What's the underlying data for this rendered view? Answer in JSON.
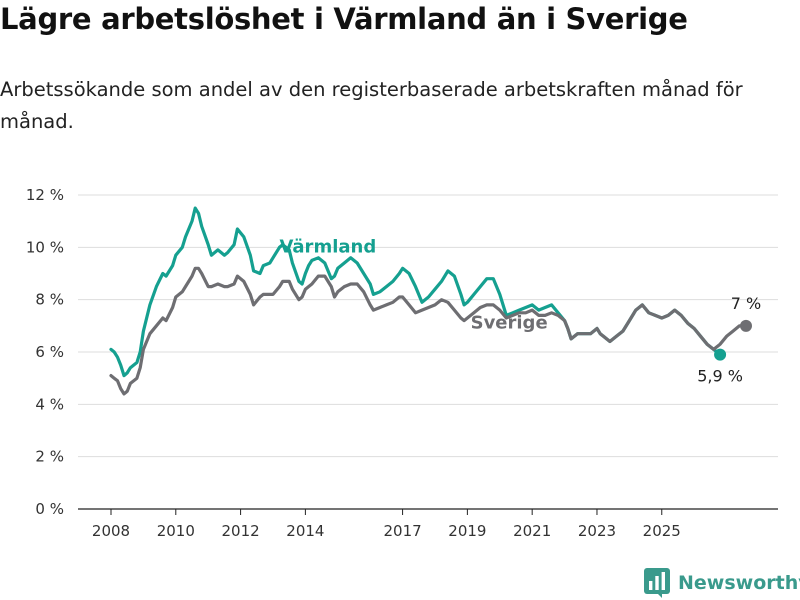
{
  "header": {
    "title": "Lägre arbetslöshet i Värmland än i Sverige",
    "subtitle": "Arbetssökande som andel av den registerbaserade arbetskraften månad för månad."
  },
  "branding": {
    "name": "Newsworthy",
    "icon": "newsworthy-logo-icon"
  },
  "colors": {
    "varmland": "#15a090",
    "sverige": "#6e6e72",
    "grid": "#dddddd"
  },
  "chart_data": {
    "type": "line",
    "xlabel": "",
    "ylabel": "",
    "ylim": [
      0,
      12
    ],
    "y_ticks": [
      0,
      2,
      4,
      6,
      8,
      10,
      12
    ],
    "y_tick_labels": [
      "0 %",
      "2 %",
      "4 %",
      "6 %",
      "8 %",
      "10 %",
      "12 %"
    ],
    "x_ticks": [
      2008,
      2010,
      2012,
      2014,
      2017,
      2019,
      2021,
      2023,
      2025
    ],
    "grid": true,
    "legend": "inline labels",
    "series": [
      {
        "name": "Värmland",
        "end_label": "5,9 %",
        "points": [
          [
            2008.0,
            6.1
          ],
          [
            2008.1,
            6.0
          ],
          [
            2008.2,
            5.8
          ],
          [
            2008.3,
            5.5
          ],
          [
            2008.4,
            5.1
          ],
          [
            2008.5,
            5.2
          ],
          [
            2008.6,
            5.4
          ],
          [
            2008.8,
            5.6
          ],
          [
            2008.9,
            6.0
          ],
          [
            2009.0,
            6.8
          ],
          [
            2009.2,
            7.8
          ],
          [
            2009.4,
            8.5
          ],
          [
            2009.6,
            9.0
          ],
          [
            2009.7,
            8.9
          ],
          [
            2009.9,
            9.3
          ],
          [
            2010.0,
            9.7
          ],
          [
            2010.2,
            10.0
          ],
          [
            2010.3,
            10.4
          ],
          [
            2010.5,
            11.0
          ],
          [
            2010.6,
            11.5
          ],
          [
            2010.7,
            11.3
          ],
          [
            2010.8,
            10.8
          ],
          [
            2011.0,
            10.1
          ],
          [
            2011.1,
            9.7
          ],
          [
            2011.3,
            9.9
          ],
          [
            2011.5,
            9.7
          ],
          [
            2011.6,
            9.8
          ],
          [
            2011.8,
            10.1
          ],
          [
            2011.9,
            10.7
          ],
          [
            2012.1,
            10.4
          ],
          [
            2012.3,
            9.7
          ],
          [
            2012.4,
            9.1
          ],
          [
            2012.6,
            9.0
          ],
          [
            2012.7,
            9.3
          ],
          [
            2012.9,
            9.4
          ],
          [
            2013.0,
            9.6
          ],
          [
            2013.2,
            10.0
          ],
          [
            2013.3,
            10.1
          ],
          [
            2013.5,
            9.9
          ],
          [
            2013.6,
            9.4
          ],
          [
            2013.8,
            8.7
          ],
          [
            2013.9,
            8.6
          ],
          [
            2014.0,
            9.0
          ],
          [
            2014.1,
            9.3
          ],
          [
            2014.2,
            9.5
          ],
          [
            2014.4,
            9.6
          ],
          [
            2014.6,
            9.4
          ],
          [
            2014.8,
            8.8
          ],
          [
            2014.9,
            8.9
          ],
          [
            2015.0,
            9.2
          ],
          [
            2015.2,
            9.4
          ],
          [
            2015.4,
            9.6
          ],
          [
            2015.6,
            9.4
          ],
          [
            2015.8,
            9.0
          ],
          [
            2016.0,
            8.6
          ],
          [
            2016.1,
            8.2
          ],
          [
            2016.3,
            8.3
          ],
          [
            2016.5,
            8.5
          ],
          [
            2016.7,
            8.7
          ],
          [
            2016.9,
            9.0
          ],
          [
            2017.0,
            9.2
          ],
          [
            2017.2,
            9.0
          ],
          [
            2017.4,
            8.5
          ],
          [
            2017.6,
            7.9
          ],
          [
            2017.8,
            8.1
          ],
          [
            2018.0,
            8.4
          ],
          [
            2018.2,
            8.7
          ],
          [
            2018.4,
            9.1
          ],
          [
            2018.6,
            8.9
          ],
          [
            2018.8,
            8.2
          ],
          [
            2018.9,
            7.8
          ],
          [
            2019.0,
            7.9
          ],
          [
            2019.2,
            8.2
          ],
          [
            2019.4,
            8.5
          ],
          [
            2019.6,
            8.8
          ],
          [
            2019.8,
            8.8
          ],
          [
            2020.0,
            8.2
          ],
          [
            2020.2,
            7.4
          ],
          [
            2020.4,
            7.5
          ],
          [
            2020.6,
            7.6
          ],
          [
            2020.8,
            7.7
          ],
          [
            2021.0,
            7.8
          ],
          [
            2021.2,
            7.6
          ],
          [
            2021.4,
            7.7
          ],
          [
            2021.6,
            7.8
          ],
          [
            2021.8,
            7.5
          ],
          [
            2022.0,
            7.2
          ],
          [
            2022.1,
            6.9
          ],
          [
            2022.2,
            6.5
          ],
          [
            2022.4,
            6.7
          ],
          [
            2022.6,
            6.7
          ],
          [
            2022.8,
            6.7
          ],
          [
            2023.0,
            6.9
          ],
          [
            2023.1,
            6.7
          ],
          [
            2023.2,
            6.6
          ],
          [
            2023.4,
            6.4
          ],
          [
            2023.6,
            6.6
          ],
          [
            2023.8,
            6.8
          ],
          [
            2024.0,
            7.2
          ],
          [
            2024.2,
            7.6
          ],
          [
            2024.4,
            7.8
          ],
          [
            2024.6,
            7.5
          ],
          [
            2024.8,
            7.4
          ],
          [
            2025.0,
            7.3
          ],
          [
            2025.2,
            7.4
          ],
          [
            2025.4,
            7.6
          ],
          [
            2025.6,
            7.4
          ],
          [
            2025.8,
            7.1
          ],
          [
            2026.0,
            6.9
          ],
          [
            2026.2,
            6.6
          ],
          [
            2026.4,
            6.3
          ],
          [
            2026.6,
            6.1
          ],
          [
            2026.8,
            5.9
          ]
        ]
      },
      {
        "name": "Sverige",
        "end_label": "7 %",
        "points": [
          [
            2008.0,
            5.1
          ],
          [
            2008.1,
            5.0
          ],
          [
            2008.2,
            4.9
          ],
          [
            2008.3,
            4.6
          ],
          [
            2008.4,
            4.4
          ],
          [
            2008.5,
            4.5
          ],
          [
            2008.6,
            4.8
          ],
          [
            2008.8,
            5.0
          ],
          [
            2008.9,
            5.4
          ],
          [
            2009.0,
            6.1
          ],
          [
            2009.2,
            6.7
          ],
          [
            2009.4,
            7.0
          ],
          [
            2009.6,
            7.3
          ],
          [
            2009.7,
            7.2
          ],
          [
            2009.9,
            7.7
          ],
          [
            2010.0,
            8.1
          ],
          [
            2010.2,
            8.3
          ],
          [
            2010.3,
            8.5
          ],
          [
            2010.5,
            8.9
          ],
          [
            2010.6,
            9.2
          ],
          [
            2010.7,
            9.2
          ],
          [
            2010.8,
            9.0
          ],
          [
            2011.0,
            8.5
          ],
          [
            2011.1,
            8.5
          ],
          [
            2011.3,
            8.6
          ],
          [
            2011.5,
            8.5
          ],
          [
            2011.6,
            8.5
          ],
          [
            2011.8,
            8.6
          ],
          [
            2011.9,
            8.9
          ],
          [
            2012.1,
            8.7
          ],
          [
            2012.3,
            8.2
          ],
          [
            2012.4,
            7.8
          ],
          [
            2012.6,
            8.1
          ],
          [
            2012.7,
            8.2
          ],
          [
            2012.9,
            8.2
          ],
          [
            2013.0,
            8.2
          ],
          [
            2013.2,
            8.5
          ],
          [
            2013.3,
            8.7
          ],
          [
            2013.5,
            8.7
          ],
          [
            2013.6,
            8.4
          ],
          [
            2013.8,
            8.0
          ],
          [
            2013.9,
            8.1
          ],
          [
            2014.0,
            8.4
          ],
          [
            2014.1,
            8.5
          ],
          [
            2014.2,
            8.6
          ],
          [
            2014.4,
            8.9
          ],
          [
            2014.6,
            8.9
          ],
          [
            2014.8,
            8.5
          ],
          [
            2014.9,
            8.1
          ],
          [
            2015.0,
            8.3
          ],
          [
            2015.2,
            8.5
          ],
          [
            2015.4,
            8.6
          ],
          [
            2015.6,
            8.6
          ],
          [
            2015.8,
            8.3
          ],
          [
            2016.0,
            7.8
          ],
          [
            2016.1,
            7.6
          ],
          [
            2016.3,
            7.7
          ],
          [
            2016.5,
            7.8
          ],
          [
            2016.7,
            7.9
          ],
          [
            2016.9,
            8.1
          ],
          [
            2017.0,
            8.1
          ],
          [
            2017.2,
            7.8
          ],
          [
            2017.4,
            7.5
          ],
          [
            2017.6,
            7.6
          ],
          [
            2017.8,
            7.7
          ],
          [
            2018.0,
            7.8
          ],
          [
            2018.2,
            8.0
          ],
          [
            2018.4,
            7.9
          ],
          [
            2018.6,
            7.6
          ],
          [
            2018.8,
            7.3
          ],
          [
            2018.9,
            7.2
          ],
          [
            2019.0,
            7.3
          ],
          [
            2019.2,
            7.5
          ],
          [
            2019.4,
            7.7
          ],
          [
            2019.6,
            7.8
          ],
          [
            2019.8,
            7.8
          ],
          [
            2020.0,
            7.6
          ],
          [
            2020.2,
            7.3
          ],
          [
            2020.4,
            7.4
          ],
          [
            2020.6,
            7.5
          ],
          [
            2020.8,
            7.5
          ],
          [
            2021.0,
            7.6
          ],
          [
            2021.2,
            7.4
          ],
          [
            2021.4,
            7.4
          ],
          [
            2021.6,
            7.5
          ],
          [
            2021.8,
            7.4
          ],
          [
            2022.0,
            7.2
          ],
          [
            2022.1,
            6.9
          ],
          [
            2022.2,
            6.5
          ],
          [
            2022.4,
            6.7
          ],
          [
            2022.6,
            6.7
          ],
          [
            2022.8,
            6.7
          ],
          [
            2023.0,
            6.9
          ],
          [
            2023.1,
            6.7
          ],
          [
            2023.2,
            6.6
          ],
          [
            2023.4,
            6.4
          ],
          [
            2023.6,
            6.6
          ],
          [
            2023.8,
            6.8
          ],
          [
            2024.0,
            7.2
          ],
          [
            2024.2,
            7.6
          ],
          [
            2024.4,
            7.8
          ],
          [
            2024.6,
            7.5
          ],
          [
            2024.8,
            7.4
          ],
          [
            2025.0,
            7.3
          ],
          [
            2025.2,
            7.4
          ],
          [
            2025.4,
            7.6
          ],
          [
            2025.6,
            7.4
          ],
          [
            2025.8,
            7.1
          ],
          [
            2026.0,
            6.9
          ],
          [
            2026.2,
            6.6
          ],
          [
            2026.4,
            6.3
          ],
          [
            2026.6,
            6.1
          ],
          [
            2026.8,
            6.3
          ],
          [
            2027.0,
            6.6
          ],
          [
            2027.2,
            6.8
          ],
          [
            2027.4,
            7.0
          ],
          [
            2027.6,
            7.0
          ]
        ]
      }
    ]
  }
}
